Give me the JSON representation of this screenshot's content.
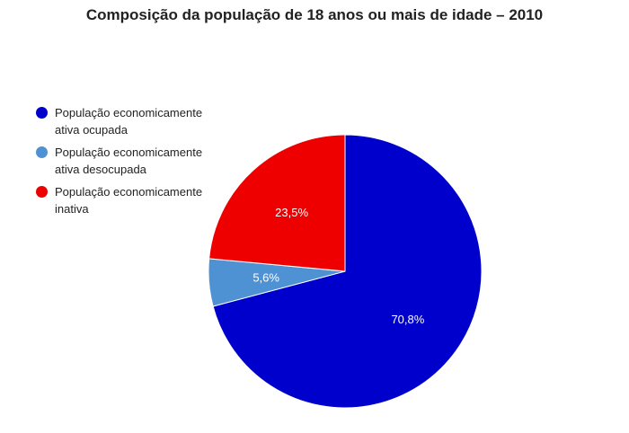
{
  "chart_data": {
    "type": "pie",
    "title": "Composição da população de 18 anos ou mais de idade – 2010",
    "legend_position": "left",
    "slices": [
      {
        "name": "População economicamente ativa ocupada",
        "value": 70.8,
        "label": "70,8%",
        "color": "#0000cc"
      },
      {
        "name": "População economicamente ativa desocupada",
        "value": 5.6,
        "label": "5,6%",
        "color": "#4f92d3"
      },
      {
        "name": "População economicamente inativa",
        "value": 23.5,
        "label": "23,5%",
        "color": "#ee0000"
      }
    ]
  }
}
